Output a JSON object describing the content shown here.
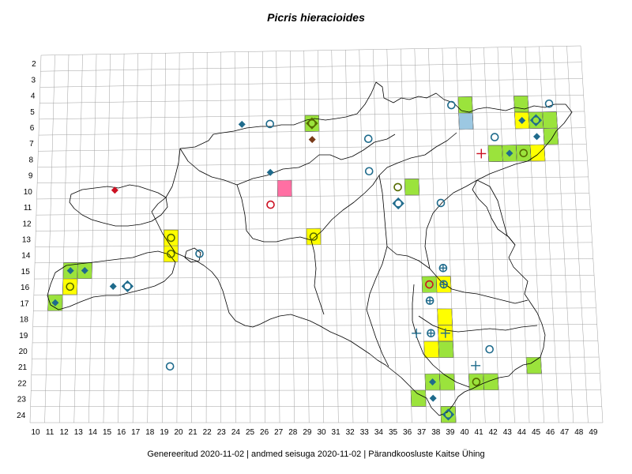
{
  "title": "Picris hieracioides",
  "footer": "Genereeritud 2020-11-02  |  andmed seisuga 2020-11-02  |  Pärandkoosluste Kaitse Ühing",
  "colors": {
    "grid": "#a0a0a0",
    "outline": "#000000",
    "green": "#9be33c",
    "yellow": "#ffff00",
    "pink": "#ff6fa3",
    "lightblue": "#9cc8e2",
    "marker_blue": "#1f6b8c",
    "marker_red": "#cc1122",
    "marker_brown": "#7a3b1a",
    "marker_olive": "#556b00"
  },
  "axes": {
    "x_ticks": [
      "10",
      "11",
      "12",
      "13",
      "14",
      "15",
      "16",
      "17",
      "18",
      "19",
      "20",
      "21",
      "22",
      "23",
      "24",
      "25",
      "26",
      "27",
      "28",
      "29",
      "30",
      "31",
      "32",
      "33",
      "34",
      "35",
      "36",
      "37",
      "38",
      "39",
      "40",
      "41",
      "42",
      "43",
      "44",
      "45",
      "46",
      "47",
      "48",
      "49"
    ],
    "y_ticks": [
      "2",
      "3",
      "4",
      "5",
      "6",
      "7",
      "8",
      "9",
      "10",
      "11",
      "12",
      "13",
      "14",
      "15",
      "16",
      "17",
      "18",
      "19",
      "20",
      "21",
      "22",
      "23",
      "24"
    ]
  },
  "cells": [
    {
      "x": 40,
      "y": 5,
      "fill": "green"
    },
    {
      "x": 44,
      "y": 5,
      "fill": "green"
    },
    {
      "x": 44,
      "y": 6,
      "fill": "yellow"
    },
    {
      "x": 45,
      "y": 6,
      "fill": "green"
    },
    {
      "x": 46,
      "y": 6,
      "fill": "green"
    },
    {
      "x": 40,
      "y": 6,
      "fill": "lightblue"
    },
    {
      "x": 46,
      "y": 7,
      "fill": "green"
    },
    {
      "x": 42,
      "y": 8,
      "fill": "green"
    },
    {
      "x": 43,
      "y": 8,
      "fill": "green"
    },
    {
      "x": 44,
      "y": 8,
      "fill": "green"
    },
    {
      "x": 45,
      "y": 8,
      "fill": "yellow"
    },
    {
      "x": 29,
      "y": 6,
      "fill": "green"
    },
    {
      "x": 27,
      "y": 10,
      "fill": "pink"
    },
    {
      "x": 36,
      "y": 10,
      "fill": "green"
    },
    {
      "x": 19,
      "y": 13,
      "fill": "yellow"
    },
    {
      "x": 19,
      "y": 14,
      "fill": "yellow"
    },
    {
      "x": 29,
      "y": 13,
      "fill": "yellow"
    },
    {
      "x": 12,
      "y": 15,
      "fill": "green"
    },
    {
      "x": 13,
      "y": 15,
      "fill": "green"
    },
    {
      "x": 12,
      "y": 16,
      "fill": "yellow"
    },
    {
      "x": 11,
      "y": 17,
      "fill": "green"
    },
    {
      "x": 37,
      "y": 16,
      "fill": "green"
    },
    {
      "x": 38,
      "y": 16,
      "fill": "yellow"
    },
    {
      "x": 38,
      "y": 18,
      "fill": "yellow"
    },
    {
      "x": 38,
      "y": 19,
      "fill": "yellow"
    },
    {
      "x": 38,
      "y": 20,
      "fill": "green"
    },
    {
      "x": 37,
      "y": 20,
      "fill": "yellow"
    },
    {
      "x": 44,
      "y": 21,
      "fill": "green"
    },
    {
      "x": 37,
      "y": 22,
      "fill": "green"
    },
    {
      "x": 38,
      "y": 22,
      "fill": "green"
    },
    {
      "x": 40,
      "y": 22,
      "fill": "green"
    },
    {
      "x": 41,
      "y": 22,
      "fill": "green"
    },
    {
      "x": 36,
      "y": 23,
      "fill": "green"
    },
    {
      "x": 38,
      "y": 24,
      "fill": "green"
    }
  ],
  "markers": [
    {
      "x": 24,
      "y": 6,
      "type": "diamond",
      "color": "marker_blue"
    },
    {
      "x": 26,
      "y": 6,
      "type": "circle",
      "color": "marker_blue"
    },
    {
      "x": 29,
      "y": 6,
      "type": "diamond-circle",
      "color": "marker_olive"
    },
    {
      "x": 29,
      "y": 7,
      "type": "diamond",
      "color": "marker_brown"
    },
    {
      "x": 33,
      "y": 7,
      "type": "circle",
      "color": "marker_blue"
    },
    {
      "x": 26,
      "y": 9,
      "type": "diamond",
      "color": "marker_blue"
    },
    {
      "x": 26,
      "y": 11,
      "type": "circle",
      "color": "marker_red"
    },
    {
      "x": 33,
      "y": 9,
      "type": "circle",
      "color": "marker_blue"
    },
    {
      "x": 15,
      "y": 10,
      "type": "diamond",
      "color": "marker_red"
    },
    {
      "x": 39,
      "y": 5,
      "type": "circle",
      "color": "marker_blue"
    },
    {
      "x": 46,
      "y": 5,
      "type": "circle",
      "color": "marker_blue"
    },
    {
      "x": 44,
      "y": 6,
      "type": "diamond",
      "color": "marker_blue"
    },
    {
      "x": 45,
      "y": 6,
      "type": "diamond-circle",
      "color": "marker_blue"
    },
    {
      "x": 42,
      "y": 7,
      "type": "circle",
      "color": "marker_blue"
    },
    {
      "x": 45,
      "y": 7,
      "type": "diamond",
      "color": "marker_blue"
    },
    {
      "x": 41,
      "y": 8,
      "type": "cross",
      "color": "marker_red"
    },
    {
      "x": 43,
      "y": 8,
      "type": "diamond",
      "color": "marker_blue"
    },
    {
      "x": 44,
      "y": 8,
      "type": "circle",
      "color": "marker_olive"
    },
    {
      "x": 35,
      "y": 10,
      "type": "circle",
      "color": "marker_olive"
    },
    {
      "x": 35,
      "y": 11,
      "type": "diamond-circle",
      "color": "marker_blue"
    },
    {
      "x": 38,
      "y": 11,
      "type": "circle",
      "color": "marker_blue"
    },
    {
      "x": 19,
      "y": 13,
      "type": "circle",
      "color": "marker_olive"
    },
    {
      "x": 19,
      "y": 14,
      "type": "circle",
      "color": "marker_olive"
    },
    {
      "x": 21,
      "y": 14,
      "type": "circle",
      "color": "marker_blue"
    },
    {
      "x": 29,
      "y": 13,
      "type": "circle",
      "color": "marker_olive"
    },
    {
      "x": 12,
      "y": 15,
      "type": "diamond",
      "color": "marker_blue"
    },
    {
      "x": 13,
      "y": 15,
      "type": "diamond",
      "color": "marker_blue"
    },
    {
      "x": 12,
      "y": 16,
      "type": "circle",
      "color": "marker_olive"
    },
    {
      "x": 15,
      "y": 16,
      "type": "diamond",
      "color": "marker_blue"
    },
    {
      "x": 16,
      "y": 16,
      "type": "diamond-circle",
      "color": "marker_blue"
    },
    {
      "x": 11,
      "y": 17,
      "type": "diamond",
      "color": "marker_blue"
    },
    {
      "x": 19,
      "y": 21,
      "type": "circle",
      "color": "marker_blue"
    },
    {
      "x": 38,
      "y": 15,
      "type": "circle-cross",
      "color": "marker_blue"
    },
    {
      "x": 37,
      "y": 16,
      "type": "circle",
      "color": "marker_red"
    },
    {
      "x": 38,
      "y": 16,
      "type": "circle-cross",
      "color": "marker_blue"
    },
    {
      "x": 37,
      "y": 17,
      "type": "circle-cross",
      "color": "marker_blue"
    },
    {
      "x": 36,
      "y": 19,
      "type": "cross",
      "color": "marker_blue"
    },
    {
      "x": 37,
      "y": 19,
      "type": "circle-cross",
      "color": "marker_blue"
    },
    {
      "x": 38,
      "y": 19,
      "type": "cross",
      "color": "marker_blue"
    },
    {
      "x": 41,
      "y": 20,
      "type": "circle",
      "color": "marker_blue"
    },
    {
      "x": 40,
      "y": 21,
      "type": "cross",
      "color": "marker_blue"
    },
    {
      "x": 37,
      "y": 22,
      "type": "diamond",
      "color": "marker_blue"
    },
    {
      "x": 40,
      "y": 22,
      "type": "circle",
      "color": "marker_olive"
    },
    {
      "x": 37,
      "y": 23,
      "type": "diamond",
      "color": "marker_blue"
    },
    {
      "x": 38,
      "y": 24,
      "type": "diamond-circle",
      "color": "marker_blue"
    }
  ]
}
